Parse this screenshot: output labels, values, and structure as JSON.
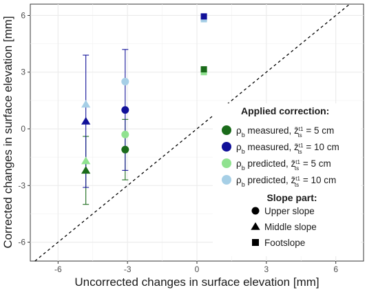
{
  "chart_data": {
    "type": "scatter",
    "title": "",
    "xlabel": "Uncorrected changes in surface elevation [mm]",
    "ylabel": "Corrected changes in surface elevation [mm]",
    "xlim": [
      -7.2,
      7.2
    ],
    "ylim": [
      -7.0,
      6.6
    ],
    "x_ticks": [
      -6,
      -3,
      0,
      3,
      6
    ],
    "y_ticks": [
      -6,
      -3,
      0,
      3,
      6
    ],
    "x_tick_labels": [
      "-6",
      "-3",
      "0",
      "3",
      "6"
    ],
    "y_tick_labels": [
      "-6",
      "-3",
      "0",
      "3",
      "6"
    ],
    "grid": true,
    "reference_line": "1:1 dashed identity line",
    "legend_placement": "right",
    "legend_color_title": "Applied correction:",
    "legend_shape_title": "Slope part:",
    "series": [
      {
        "name": "ρb measured, z̄ts t1 = 5 cm",
        "label_main": "ρ",
        "label_sub": "b",
        "label_method": "measured",
        "label_z_sup": "t1",
        "label_z_sub": "ts",
        "label_value": "= 5 cm",
        "color": "#1a6b1a",
        "points": [
          {
            "x": -3.1,
            "y": -1.1,
            "shape": "circle",
            "err_lo": -2.7,
            "err_hi": 0.5
          },
          {
            "x": -4.8,
            "y": -2.2,
            "shape": "triangle",
            "err_lo": -4.0,
            "err_hi": -0.4
          },
          {
            "x": 0.3,
            "y": 3.15,
            "shape": "square",
            "err_lo": 3.05,
            "err_hi": 3.25
          }
        ]
      },
      {
        "name": "ρb measured, z̄ts t1 = 10 cm",
        "label_main": "ρ",
        "label_sub": "b",
        "label_method": "measured",
        "label_z_sup": "t1",
        "label_z_sub": "ts",
        "label_value": "= 10 cm",
        "color": "#111199",
        "points": [
          {
            "x": -3.1,
            "y": 1.0,
            "shape": "circle",
            "err_lo": -2.2,
            "err_hi": 4.2
          },
          {
            "x": -4.8,
            "y": 0.4,
            "shape": "triangle",
            "err_lo": -3.1,
            "err_hi": 3.9
          },
          {
            "x": 0.3,
            "y": 5.95,
            "shape": "square",
            "err_lo": 5.75,
            "err_hi": 6.05
          }
        ]
      },
      {
        "name": "ρb predicted, z̄ts t1 = 5 cm",
        "label_main": "ρ",
        "label_sub": "b",
        "label_method": "predicted",
        "label_z_sup": "t1",
        "label_z_sub": "ts",
        "label_value": "= 5 cm",
        "color": "#90e290",
        "points": [
          {
            "x": -3.1,
            "y": -0.3,
            "shape": "circle"
          },
          {
            "x": -4.8,
            "y": -1.7,
            "shape": "triangle"
          },
          {
            "x": 0.3,
            "y": 3.0,
            "shape": "square"
          }
        ]
      },
      {
        "name": "ρb predicted, z̄ts t1 = 10 cm",
        "label_main": "ρ",
        "label_sub": "b",
        "label_method": "predicted",
        "label_z_sup": "t1",
        "label_z_sub": "ts",
        "label_value": "= 10 cm",
        "color": "#a6cfe6",
        "points": [
          {
            "x": -3.1,
            "y": 2.5,
            "shape": "circle"
          },
          {
            "x": -4.8,
            "y": 1.3,
            "shape": "triangle"
          },
          {
            "x": 0.3,
            "y": 5.8,
            "shape": "square"
          }
        ]
      }
    ],
    "shape_legend": [
      {
        "label": "Upper slope",
        "shape": "circle"
      },
      {
        "label": "Middle slope",
        "shape": "triangle"
      },
      {
        "label": "Footslope",
        "shape": "square"
      }
    ]
  }
}
